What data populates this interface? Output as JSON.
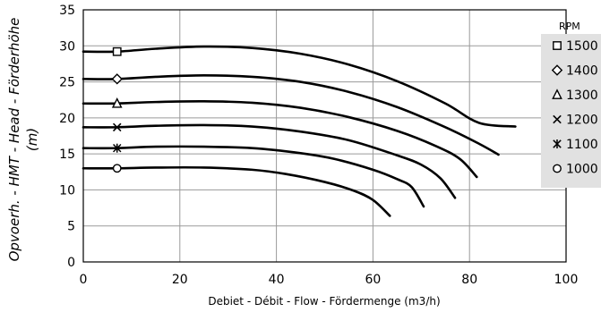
{
  "chart_data": {
    "type": "line",
    "xlabel": "Debiet - Débit - Flow - Fördermenge (m3/h)",
    "ylabel": "Opvoerh. - HMT - Head - Förderhöhe",
    "ylabel_unit": "(m)",
    "xlim": [
      0,
      100
    ],
    "ylim": [
      0,
      35
    ],
    "x_ticks": [
      "0",
      "20",
      "40",
      "60",
      "80",
      "100"
    ],
    "y_ticks": [
      "0",
      "5",
      "10",
      "15",
      "20",
      "25",
      "30",
      "35"
    ],
    "grid": true,
    "legend_title": "RPM",
    "legend_position": "right",
    "series": [
      {
        "name": "1500",
        "marker": "square",
        "points": [
          [
            0,
            29.2
          ],
          [
            7,
            29.2
          ],
          [
            15,
            29.6
          ],
          [
            25,
            29.9
          ],
          [
            35,
            29.7
          ],
          [
            45,
            28.9
          ],
          [
            55,
            27.4
          ],
          [
            65,
            25.1
          ],
          [
            75,
            22.0
          ],
          [
            82,
            19.3
          ],
          [
            89.5,
            18.8
          ]
        ]
      },
      {
        "name": "1400",
        "marker": "diamond",
        "points": [
          [
            0,
            25.4
          ],
          [
            7,
            25.4
          ],
          [
            15,
            25.7
          ],
          [
            25,
            25.9
          ],
          [
            35,
            25.7
          ],
          [
            45,
            25.0
          ],
          [
            55,
            23.6
          ],
          [
            65,
            21.5
          ],
          [
            75,
            18.7
          ],
          [
            82,
            16.4
          ],
          [
            86,
            14.9
          ]
        ]
      },
      {
        "name": "1300",
        "marker": "triangle",
        "points": [
          [
            0,
            22.0
          ],
          [
            7,
            22.0
          ],
          [
            15,
            22.2
          ],
          [
            25,
            22.3
          ],
          [
            35,
            22.1
          ],
          [
            45,
            21.4
          ],
          [
            55,
            20.1
          ],
          [
            65,
            18.2
          ],
          [
            73,
            16.1
          ],
          [
            78,
            14.3
          ],
          [
            81.5,
            11.8
          ]
        ]
      },
      {
        "name": "1200",
        "marker": "cross",
        "points": [
          [
            0,
            18.7
          ],
          [
            7,
            18.7
          ],
          [
            15,
            18.9
          ],
          [
            25,
            19.0
          ],
          [
            35,
            18.8
          ],
          [
            45,
            18.1
          ],
          [
            55,
            16.9
          ],
          [
            65,
            14.8
          ],
          [
            70,
            13.5
          ],
          [
            74,
            11.6
          ],
          [
            77,
            8.9
          ]
        ]
      },
      {
        "name": "1100",
        "marker": "asterisk",
        "points": [
          [
            0,
            15.8
          ],
          [
            7,
            15.8
          ],
          [
            15,
            16.0
          ],
          [
            25,
            16.0
          ],
          [
            35,
            15.8
          ],
          [
            45,
            15.1
          ],
          [
            52,
            14.3
          ],
          [
            60,
            12.8
          ],
          [
            65,
            11.5
          ],
          [
            68,
            10.4
          ],
          [
            70.5,
            7.7
          ]
        ]
      },
      {
        "name": "1000",
        "marker": "circle",
        "points": [
          [
            0,
            13.0
          ],
          [
            7,
            13.0
          ],
          [
            15,
            13.1
          ],
          [
            25,
            13.1
          ],
          [
            35,
            12.8
          ],
          [
            42,
            12.2
          ],
          [
            50,
            11.1
          ],
          [
            56,
            9.9
          ],
          [
            60,
            8.6
          ],
          [
            63.5,
            6.4
          ]
        ]
      }
    ],
    "marker_x": 7
  }
}
